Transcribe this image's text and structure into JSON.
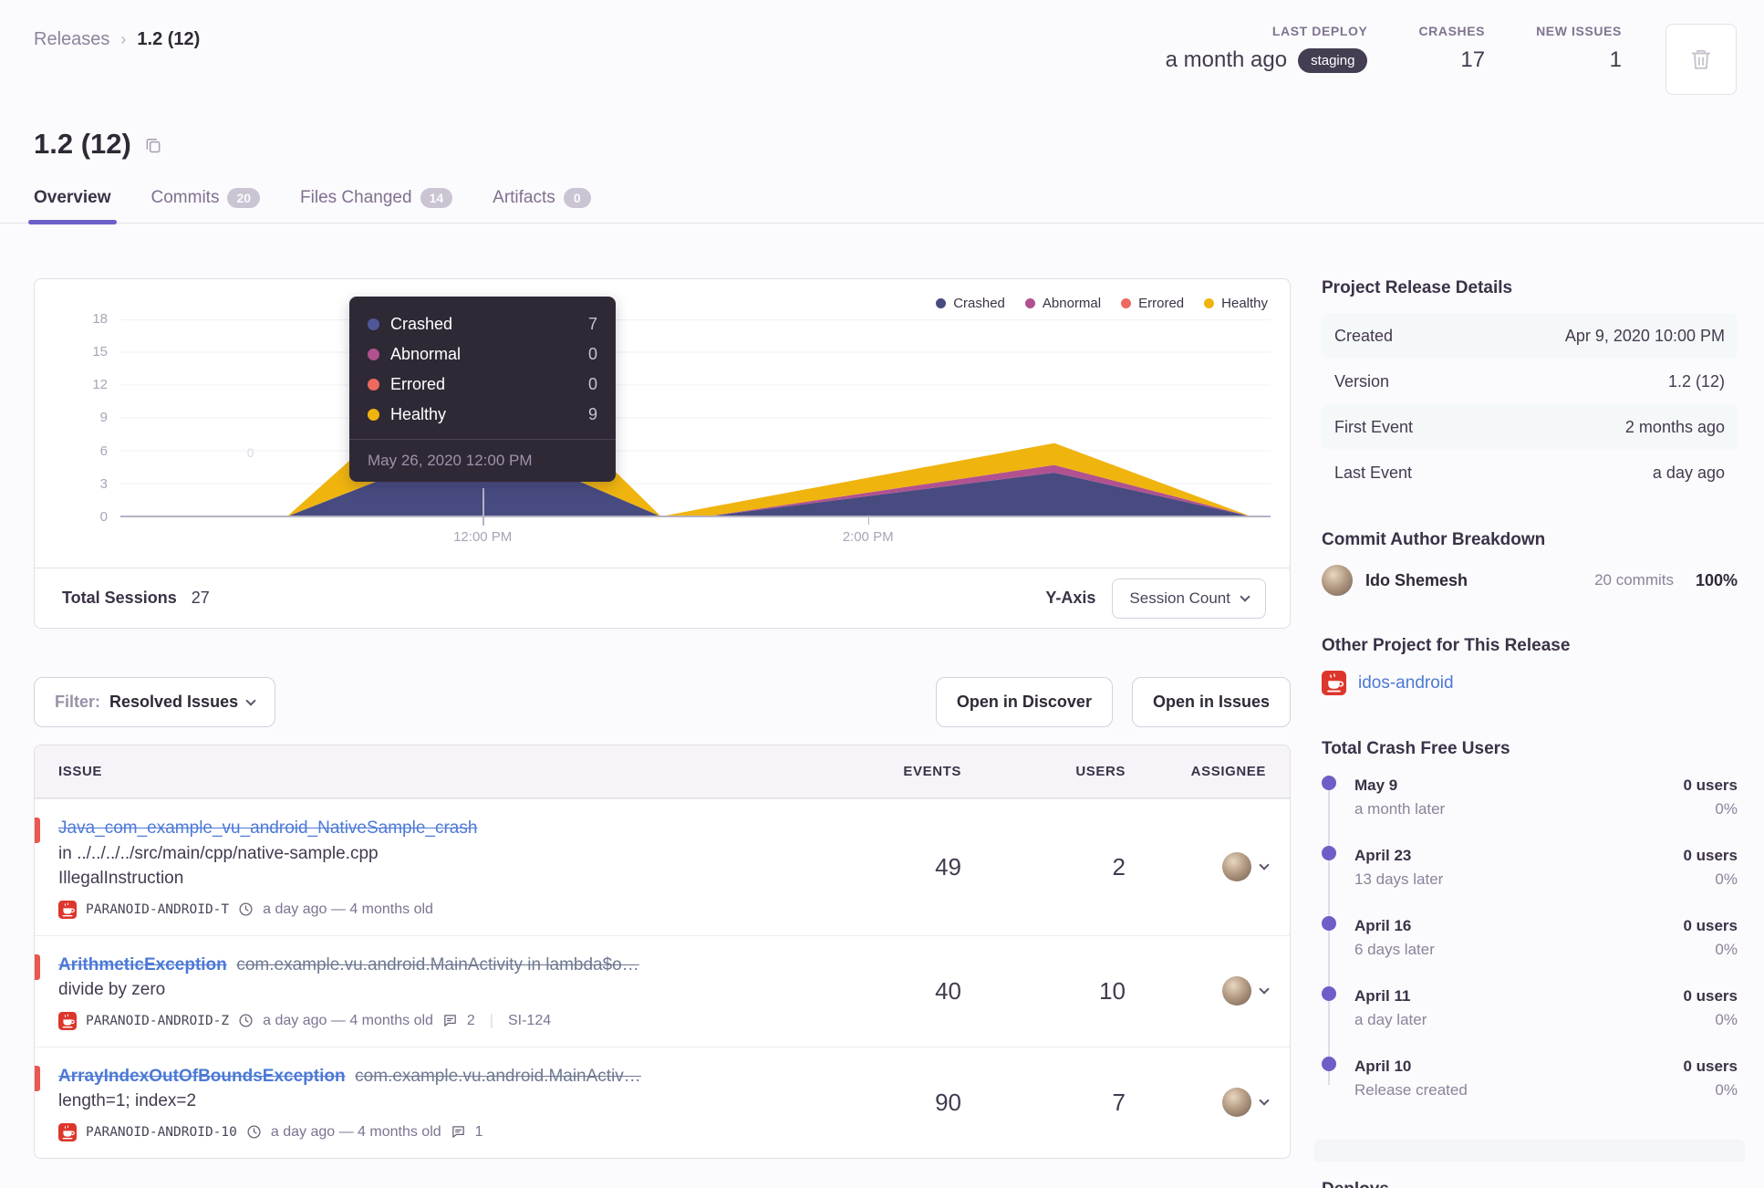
{
  "breadcrumb": {
    "parent": "Releases",
    "current": "1.2 (12)"
  },
  "header_stats": {
    "last_deploy_label": "LAST DEPLOY",
    "last_deploy_value": "a month ago",
    "last_deploy_env": "staging",
    "crashes_label": "CRASHES",
    "crashes_value": "17",
    "new_issues_label": "NEW ISSUES",
    "new_issues_value": "1"
  },
  "title": "1.2 (12)",
  "tabs": [
    {
      "label": "Overview",
      "count": ""
    },
    {
      "label": "Commits",
      "count": "20"
    },
    {
      "label": "Files Changed",
      "count": "14"
    },
    {
      "label": "Artifacts",
      "count": "0"
    }
  ],
  "chart": {
    "legend": [
      {
        "label": "Crashed",
        "color": "#474b80"
      },
      {
        "label": "Abnormal",
        "color": "#b0528f"
      },
      {
        "label": "Errored",
        "color": "#ec6a5f"
      },
      {
        "label": "Healthy",
        "color": "#f0b40f"
      }
    ],
    "tooltip": {
      "rows": [
        {
          "label": "Crashed",
          "value": "7",
          "color": "#4f5798"
        },
        {
          "label": "Abnormal",
          "value": "0",
          "color": "#b0528f"
        },
        {
          "label": "Errored",
          "value": "0",
          "color": "#ec6a5f"
        },
        {
          "label": "Healthy",
          "value": "9",
          "color": "#f0b40f"
        }
      ],
      "date": "May 26, 2020 12:00 PM"
    },
    "y_ticks_labels": [
      "18",
      "15",
      "12",
      "9",
      "6",
      "3",
      "0"
    ],
    "x_ticks": [
      "12:00 PM",
      "2:00 PM"
    ],
    "zero_label": "0",
    "footer": {
      "total_sessions_label": "Total Sessions",
      "total_sessions_value": "27",
      "y_axis_label": "Y-Axis",
      "y_axis_value": "Session Count"
    }
  },
  "chart_data": {
    "type": "area",
    "stacked": true,
    "x_pct": [
      14.5,
      31.5,
      47,
      51,
      81.2,
      98.3
    ],
    "x_tick_labels": [
      "12:00 PM",
      "2:00 PM"
    ],
    "ylim": [
      0,
      18
    ],
    "y_ticks": [
      0,
      3,
      6,
      9,
      12,
      15,
      18
    ],
    "series": [
      {
        "name": "Crashed",
        "color": "#474b80",
        "values": [
          0,
          7,
          0,
          0,
          4,
          0
        ]
      },
      {
        "name": "Abnormal",
        "color": "#b0528f",
        "values": [
          0,
          0,
          0,
          0,
          0.7,
          0
        ]
      },
      {
        "name": "Errored",
        "color": "#ec6a5f",
        "values": [
          0,
          0,
          0,
          0,
          0,
          0
        ]
      },
      {
        "name": "Healthy",
        "color": "#f0b40f",
        "values": [
          0,
          9,
          0,
          0.8,
          2,
          0
        ]
      }
    ],
    "highlighted_point": {
      "x": "May 26, 2020 12:00 PM",
      "Crashed": 7,
      "Abnormal": 0,
      "Errored": 0,
      "Healthy": 9
    },
    "total_sessions": 27,
    "legend_position": "top-right",
    "grid": true
  },
  "filter_bar": {
    "filter_label": "Filter:",
    "filter_value": "Resolved Issues",
    "discover_button": "Open in Discover",
    "issues_button": "Open in Issues"
  },
  "issues_table": {
    "columns": [
      "ISSUE",
      "EVENTS",
      "USERS",
      "ASSIGNEE"
    ],
    "rows": [
      {
        "title": "Java_com_example_vu_android_NativeSample_crash",
        "culprit": "",
        "line2": "in ../../../../src/main/cpp/native-sample.cpp",
        "line3": "IllegalInstruction",
        "project": "PARANOID-ANDROID-T",
        "age": "a day ago — 4 months old",
        "comments": "",
        "short_id": "",
        "events": "49",
        "users": "2"
      },
      {
        "title": "ArithmeticException",
        "culprit": "com.example.vu.android.MainActivity in lambda$o…",
        "line2": "divide by zero",
        "line3": "",
        "project": "PARANOID-ANDROID-Z",
        "age": "a day ago — 4 months old",
        "comments": "2",
        "short_id": "SI-124",
        "events": "40",
        "users": "10"
      },
      {
        "title": "ArrayIndexOutOfBoundsException",
        "culprit": "com.example.vu.android.MainActiv…",
        "line2": "length=1; index=2",
        "line3": "",
        "project": "PARANOID-ANDROID-10",
        "age": "a day ago — 4 months old",
        "comments": "1",
        "short_id": "",
        "events": "90",
        "users": "7"
      }
    ]
  },
  "sidebar": {
    "release_details": {
      "heading": "Project Release Details",
      "rows": [
        {
          "label": "Created",
          "value": "Apr 9, 2020 10:00 PM"
        },
        {
          "label": "Version",
          "value": "1.2 (12)"
        },
        {
          "label": "First Event",
          "value": "2 months ago"
        },
        {
          "label": "Last Event",
          "value": "a day ago"
        }
      ]
    },
    "commit_authors": {
      "heading": "Commit Author Breakdown",
      "author": "Ido Shemesh",
      "commits": "20 commits",
      "percent": "100%"
    },
    "other_project": {
      "heading": "Other Project for This Release",
      "project": "idos-android"
    },
    "crash_free": {
      "heading": "Total Crash Free Users",
      "entries": [
        {
          "date": "May 9",
          "desc": "a month later",
          "users": "0 users",
          "pct": "0%"
        },
        {
          "date": "April 23",
          "desc": "13 days later",
          "users": "0 users",
          "pct": "0%"
        },
        {
          "date": "April 16",
          "desc": "6 days later",
          "users": "0 users",
          "pct": "0%"
        },
        {
          "date": "April 11",
          "desc": "a day later",
          "users": "0 users",
          "pct": "0%"
        },
        {
          "date": "April 10",
          "desc": "Release created",
          "users": "0 users",
          "pct": "0%"
        }
      ]
    },
    "deploys_heading": "Deploys"
  }
}
